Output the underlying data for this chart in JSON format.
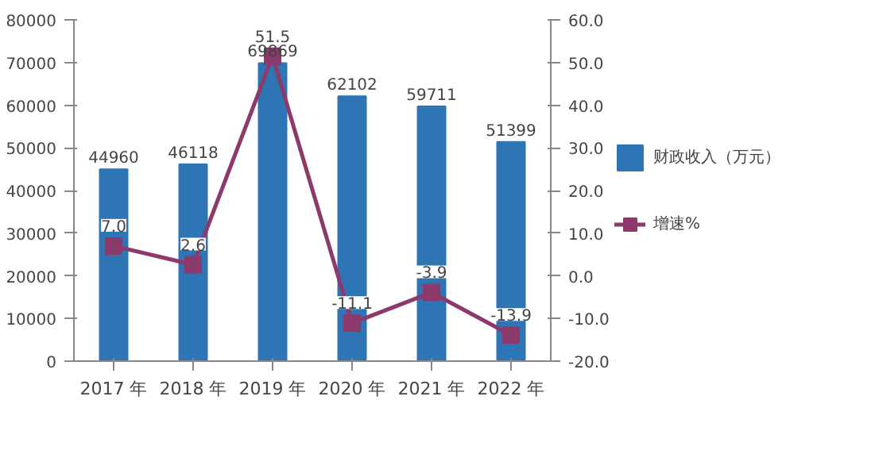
{
  "chart_data": {
    "type": "bar",
    "categories": [
      "2017 年",
      "2018 年",
      "2019 年",
      "2020 年",
      "2021 年",
      "2022 年"
    ],
    "series": [
      {
        "name": "财政收入（万元）",
        "color": "#2e75b6",
        "values": [
          44960,
          46118,
          69869,
          62102,
          59711,
          51399
        ]
      },
      {
        "name": "增速%",
        "type": "line",
        "axis": "y2",
        "color": "#8b3a6b",
        "values": [
          7.0,
          2.6,
          51.5,
          -11.1,
          -3.9,
          -13.9
        ],
        "value_labels": [
          "7.0",
          "2.6",
          "51.5",
          "-11.1",
          "-3.9",
          "-13.9"
        ]
      }
    ],
    "ylim": [
      0,
      80000
    ],
    "yticks": [
      0,
      10000,
      20000,
      30000,
      40000,
      50000,
      60000,
      70000,
      80000
    ],
    "y2lim": [
      -20,
      60
    ],
    "y2ticks": [
      {
        "value": -20,
        "label": "-20.0"
      },
      {
        "value": -10,
        "label": "-10.0"
      },
      {
        "value": 0,
        "label": "0.0"
      },
      {
        "value": 10,
        "label": "10.0"
      },
      {
        "value": 20,
        "label": "20.0"
      },
      {
        "value": 30,
        "label": "30.0"
      },
      {
        "value": 40,
        "label": "40.0"
      },
      {
        "value": 50,
        "label": "50.0"
      },
      {
        "value": 60,
        "label": "60.0"
      }
    ],
    "data_labels": true,
    "legend": "right",
    "marker": "square",
    "grid": false
  }
}
